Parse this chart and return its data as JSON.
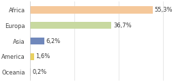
{
  "categories": [
    "Africa",
    "Europa",
    "Asia",
    "America",
    "Oceania"
  ],
  "values": [
    55.3,
    36.7,
    6.2,
    1.6,
    0.2
  ],
  "labels": [
    "55,3%",
    "36,7%",
    "6,2%",
    "1,6%",
    "0,2%"
  ],
  "bar_colors": [
    "#f5c89a",
    "#c8d9a0",
    "#7088bb",
    "#e8d060",
    "#aaaaaa"
  ],
  "background_color": "#ffffff",
  "xlim": [
    0,
    72
  ],
  "label_fontsize": 6.0,
  "tick_fontsize": 6.0,
  "bar_height": 0.45
}
